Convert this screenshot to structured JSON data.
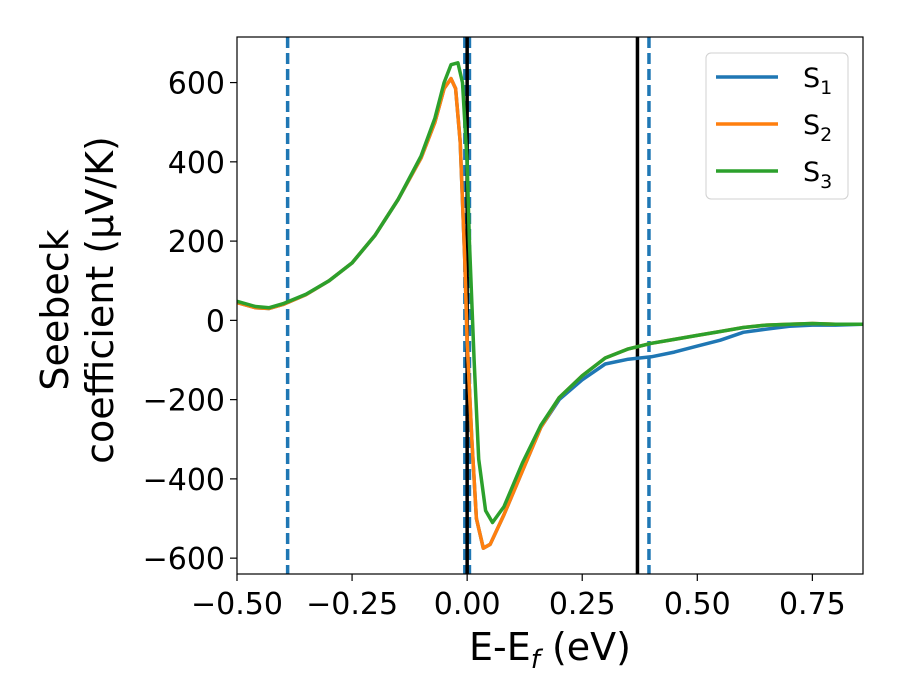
{
  "chart_data": {
    "type": "line",
    "xlabel": "E-E",
    "xlabel_sub": "f",
    "xlabel_unit": "(eV)",
    "ylabel_line1": "Seebeck",
    "ylabel_line2": "coefficient  (μV/K)",
    "xlim": [
      -0.5,
      0.86
    ],
    "ylim": [
      -640,
      715
    ],
    "xticks": [
      -0.5,
      -0.25,
      0.0,
      0.25,
      0.5,
      0.75
    ],
    "xtick_labels": [
      "−0.50",
      "−0.25",
      "0.00",
      "0.25",
      "0.50",
      "0.75"
    ],
    "yticks": [
      -600,
      -400,
      -200,
      0,
      200,
      400,
      600
    ],
    "ytick_labels": [
      "−600",
      "−400",
      "−200",
      "0",
      "200",
      "400",
      "600"
    ],
    "grid": false,
    "legend_position": "top-right",
    "series": [
      {
        "name": "S",
        "sub": "1",
        "color": "#1f77b4",
        "points": [
          [
            -0.5,
            45
          ],
          [
            -0.46,
            32
          ],
          [
            -0.43,
            30
          ],
          [
            -0.4,
            40
          ],
          [
            -0.35,
            65
          ],
          [
            -0.3,
            100
          ],
          [
            -0.25,
            145
          ],
          [
            -0.2,
            215
          ],
          [
            -0.15,
            305
          ],
          [
            -0.1,
            410
          ],
          [
            -0.07,
            500
          ],
          [
            -0.05,
            585
          ],
          [
            -0.035,
            610
          ],
          [
            -0.025,
            585
          ],
          [
            -0.015,
            450
          ],
          [
            -0.005,
            150
          ],
          [
            0.0,
            -50
          ],
          [
            0.01,
            -300
          ],
          [
            0.02,
            -500
          ],
          [
            0.035,
            -575
          ],
          [
            0.05,
            -565
          ],
          [
            0.08,
            -490
          ],
          [
            0.12,
            -380
          ],
          [
            0.16,
            -270
          ],
          [
            0.2,
            -200
          ],
          [
            0.25,
            -150
          ],
          [
            0.3,
            -110
          ],
          [
            0.35,
            -98
          ],
          [
            0.4,
            -92
          ],
          [
            0.45,
            -80
          ],
          [
            0.5,
            -65
          ],
          [
            0.55,
            -50
          ],
          [
            0.6,
            -30
          ],
          [
            0.65,
            -22
          ],
          [
            0.7,
            -15
          ],
          [
            0.75,
            -12
          ],
          [
            0.8,
            -12
          ],
          [
            0.86,
            -10
          ]
        ]
      },
      {
        "name": "S",
        "sub": "2",
        "color": "#ff7f0e",
        "points": [
          [
            -0.5,
            45
          ],
          [
            -0.46,
            32
          ],
          [
            -0.43,
            30
          ],
          [
            -0.4,
            40
          ],
          [
            -0.35,
            65
          ],
          [
            -0.3,
            100
          ],
          [
            -0.25,
            145
          ],
          [
            -0.2,
            215
          ],
          [
            -0.15,
            305
          ],
          [
            -0.1,
            410
          ],
          [
            -0.07,
            500
          ],
          [
            -0.05,
            585
          ],
          [
            -0.035,
            610
          ],
          [
            -0.025,
            585
          ],
          [
            -0.015,
            450
          ],
          [
            -0.005,
            150
          ],
          [
            0.0,
            -50
          ],
          [
            0.01,
            -300
          ],
          [
            0.02,
            -500
          ],
          [
            0.035,
            -575
          ],
          [
            0.05,
            -565
          ],
          [
            0.08,
            -490
          ],
          [
            0.12,
            -380
          ],
          [
            0.16,
            -270
          ],
          [
            0.2,
            -195
          ],
          [
            0.25,
            -140
          ],
          [
            0.3,
            -95
          ],
          [
            0.35,
            -72
          ],
          [
            0.4,
            -58
          ],
          [
            0.45,
            -48
          ],
          [
            0.5,
            -38
          ],
          [
            0.55,
            -28
          ],
          [
            0.6,
            -18
          ],
          [
            0.65,
            -12
          ],
          [
            0.7,
            -10
          ],
          [
            0.75,
            -8
          ],
          [
            0.8,
            -10
          ],
          [
            0.86,
            -10
          ]
        ]
      },
      {
        "name": "S",
        "sub": "3",
        "color": "#2ca02c",
        "points": [
          [
            -0.5,
            48
          ],
          [
            -0.46,
            35
          ],
          [
            -0.43,
            32
          ],
          [
            -0.4,
            42
          ],
          [
            -0.35,
            66
          ],
          [
            -0.3,
            100
          ],
          [
            -0.25,
            145
          ],
          [
            -0.2,
            215
          ],
          [
            -0.15,
            305
          ],
          [
            -0.1,
            415
          ],
          [
            -0.07,
            510
          ],
          [
            -0.05,
            600
          ],
          [
            -0.035,
            645
          ],
          [
            -0.02,
            650
          ],
          [
            -0.01,
            600
          ],
          [
            0.0,
            400
          ],
          [
            0.005,
            200
          ],
          [
            0.015,
            -100
          ],
          [
            0.025,
            -350
          ],
          [
            0.04,
            -480
          ],
          [
            0.055,
            -510
          ],
          [
            0.08,
            -470
          ],
          [
            0.12,
            -360
          ],
          [
            0.16,
            -265
          ],
          [
            0.2,
            -195
          ],
          [
            0.25,
            -140
          ],
          [
            0.3,
            -95
          ],
          [
            0.35,
            -72
          ],
          [
            0.4,
            -58
          ],
          [
            0.45,
            -48
          ],
          [
            0.5,
            -38
          ],
          [
            0.55,
            -28
          ],
          [
            0.6,
            -18
          ],
          [
            0.65,
            -12
          ],
          [
            0.7,
            -10
          ],
          [
            0.75,
            -8
          ],
          [
            0.8,
            -10
          ],
          [
            0.86,
            -10
          ]
        ]
      }
    ],
    "vlines": [
      {
        "x": -0.39,
        "style": "dashed",
        "color": "#1f77b4"
      },
      {
        "x": -0.005,
        "style": "dashed",
        "color": "#1f77b4"
      },
      {
        "x": 0.005,
        "style": "dashed",
        "color": "#1f77b4"
      },
      {
        "x": 0.395,
        "style": "dashed",
        "color": "#1f77b4"
      },
      {
        "x": 0.0,
        "style": "solid",
        "color": "#000000"
      },
      {
        "x": 0.37,
        "style": "solid",
        "color": "#000000"
      }
    ]
  }
}
